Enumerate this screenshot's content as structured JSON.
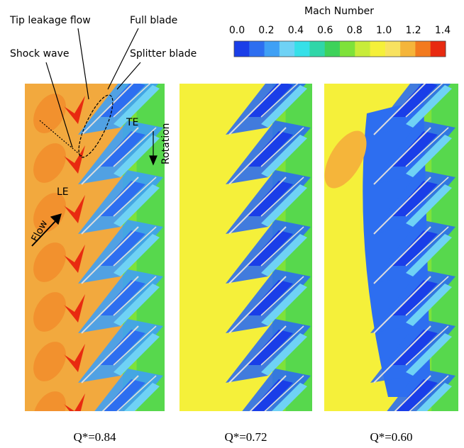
{
  "colorbar": {
    "title": "Mach Number",
    "ticks": [
      "0.0",
      "0.2",
      "0.4",
      "0.6",
      "0.8",
      "1.0",
      "1.2",
      "1.4"
    ]
  },
  "annotations": {
    "tip_leakage_flow": "Tip leakage flow",
    "full_blade": "Full blade",
    "shock_wave": "Shock wave",
    "splitter_blade": "Splitter blade",
    "te": "TE",
    "le": "LE",
    "flow": "Flow",
    "rotation": "Rotation"
  },
  "panels": [
    {
      "label": "Q*=0.84"
    },
    {
      "label": "Q*=0.72"
    },
    {
      "label": "Q*=0.60"
    }
  ]
}
